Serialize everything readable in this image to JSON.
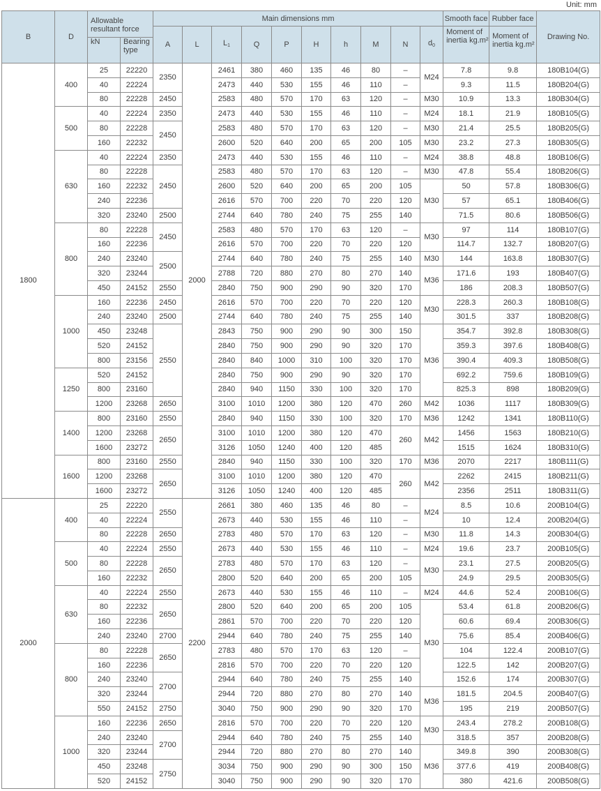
{
  "unit_label": "Unit: mm",
  "header": {
    "B": "B",
    "D": "D",
    "allowable": "Allowable resultant force",
    "kN": "kN",
    "bearing_type": "Bearing type",
    "main_dimensions": "Main dimensions mm",
    "A": "A",
    "L": "L",
    "L1": "L",
    "L1_sub": "1",
    "Q": "Q",
    "P": "P",
    "H": "H",
    "h": "h",
    "M": "M",
    "N": "N",
    "d0": "d",
    "d0_sub": "0",
    "smooth_face": "Smooth face",
    "rubber_face": "Rubber face",
    "moment_smooth": "Moment of inertia kg.m²",
    "moment_rubber": "Moment of inertia kg.m²",
    "drawing_no": "Drawing No."
  },
  "colors": {
    "header_bg": "#cfe0ea",
    "border": "#8a8a8a"
  },
  "rows": [
    [
      [
        "1800",
        30
      ],
      [
        "400",
        3
      ],
      "25",
      "22220",
      [
        "2350",
        2
      ],
      [
        "2000",
        30
      ],
      "2461",
      "380",
      "460",
      "135",
      "46",
      "80",
      "–",
      [
        "M24",
        2
      ],
      "7.8",
      "9.8",
      "180B104(G)"
    ],
    [
      null,
      null,
      "40",
      "22224",
      null,
      null,
      "2473",
      "440",
      "530",
      "155",
      "46",
      "110",
      "–",
      null,
      "9.3",
      "11.5",
      "180B204(G)"
    ],
    [
      null,
      null,
      "80",
      "22228",
      "2450",
      null,
      "2583",
      "480",
      "570",
      "170",
      "63",
      "120",
      "–",
      "M30",
      "10.9",
      "13.3",
      "180B304(G)"
    ],
    [
      null,
      [
        "500",
        3
      ],
      "40",
      "22224",
      "2350",
      null,
      "2473",
      "440",
      "530",
      "155",
      "46",
      "110",
      "–",
      "M24",
      "18.1",
      "21.9",
      "180B105(G)"
    ],
    [
      null,
      null,
      "80",
      "22228",
      [
        "2450",
        2
      ],
      null,
      "2583",
      "480",
      "570",
      "170",
      "63",
      "120",
      "–",
      "M30",
      "21.4",
      "25.5",
      "180B205(G)"
    ],
    [
      null,
      null,
      "160",
      "22232",
      null,
      null,
      "2600",
      "520",
      "640",
      "200",
      "65",
      "200",
      "105",
      "M30",
      "23.2",
      "27.3",
      "180B305(G)"
    ],
    [
      null,
      [
        "630",
        5
      ],
      "40",
      "22224",
      "2350",
      null,
      "2473",
      "440",
      "530",
      "155",
      "46",
      "110",
      "–",
      "M24",
      "38.8",
      "48.8",
      "180B106(G)"
    ],
    [
      null,
      null,
      "80",
      "22228",
      [
        "2450",
        3
      ],
      null,
      "2583",
      "480",
      "570",
      "170",
      "63",
      "120",
      "–",
      "M30",
      "47.8",
      "55.4",
      "180B206(G)"
    ],
    [
      null,
      null,
      "160",
      "22232",
      null,
      null,
      "2600",
      "520",
      "640",
      "200",
      "65",
      "200",
      "105",
      [
        "M30",
        3
      ],
      "50",
      "57.8",
      "180B306(G)"
    ],
    [
      null,
      null,
      "240",
      "22236",
      null,
      null,
      "2616",
      "570",
      "700",
      "220",
      "70",
      "220",
      "120",
      null,
      "57",
      "65.1",
      "180B406(G)"
    ],
    [
      null,
      null,
      "320",
      "23240",
      "2500",
      null,
      "2744",
      "640",
      "780",
      "240",
      "75",
      "255",
      "140",
      null,
      "71.5",
      "80.6",
      "180B506(G)"
    ],
    [
      null,
      [
        "800",
        5
      ],
      "80",
      "22228",
      [
        "2450",
        2
      ],
      null,
      "2583",
      "480",
      "570",
      "170",
      "63",
      "120",
      "–",
      [
        "M30",
        2
      ],
      "97",
      "114",
      "180B107(G)"
    ],
    [
      null,
      null,
      "160",
      "22236",
      null,
      null,
      "2616",
      "570",
      "700",
      "220",
      "70",
      "220",
      "120",
      null,
      "114.7",
      "132.7",
      "180B207(G)"
    ],
    [
      null,
      null,
      "240",
      "23240",
      [
        "2500",
        2
      ],
      null,
      "2744",
      "640",
      "780",
      "240",
      "75",
      "255",
      "140",
      "M30",
      "144",
      "163.8",
      "180B307(G)"
    ],
    [
      null,
      null,
      "320",
      "23244",
      null,
      null,
      "2788",
      "720",
      "880",
      "270",
      "80",
      "270",
      "140",
      [
        "M36",
        2
      ],
      "171.6",
      "193",
      "180B407(G)"
    ],
    [
      null,
      null,
      "450",
      "24152",
      "2550",
      null,
      "2840",
      "750",
      "900",
      "290",
      "90",
      "320",
      "170",
      null,
      "186",
      "208.3",
      "180B507(G)"
    ],
    [
      null,
      [
        "1000",
        5
      ],
      "160",
      "22236",
      "2450",
      null,
      "2616",
      "570",
      "700",
      "220",
      "70",
      "220",
      "120",
      [
        "M30",
        2
      ],
      "228.3",
      "260.3",
      "180B108(G)"
    ],
    [
      null,
      null,
      "240",
      "23240",
      "2500",
      null,
      "2744",
      "640",
      "780",
      "240",
      "75",
      "255",
      "140",
      null,
      "301.5",
      "337",
      "180B208(G)"
    ],
    [
      null,
      null,
      "450",
      "23248",
      [
        "2550",
        5
      ],
      null,
      "2843",
      "750",
      "900",
      "290",
      "90",
      "300",
      "150",
      [
        "M36",
        5
      ],
      "354.7",
      "392.8",
      "180B308(G)"
    ],
    [
      null,
      null,
      "520",
      "24152",
      null,
      null,
      "2840",
      "750",
      "900",
      "290",
      "90",
      "320",
      "170",
      null,
      "359.3",
      "397.6",
      "180B408(G)"
    ],
    [
      null,
      null,
      "800",
      "23156",
      null,
      null,
      "2840",
      "840",
      "1000",
      "310",
      "100",
      "320",
      "170",
      null,
      "390.4",
      "409.3",
      "180B508(G)"
    ],
    [
      null,
      [
        "1250",
        3
      ],
      "520",
      "24152",
      null,
      null,
      "2840",
      "750",
      "900",
      "290",
      "90",
      "320",
      "170",
      null,
      "692.2",
      "759.6",
      "180B109(G)"
    ],
    [
      null,
      null,
      "800",
      "23160",
      null,
      null,
      "2840",
      "940",
      "1150",
      "330",
      "100",
      "320",
      "170",
      null,
      "825.3",
      "898",
      "180B209(G)"
    ],
    [
      null,
      null,
      "1200",
      "23268",
      "2650",
      null,
      "3100",
      "1010",
      "1200",
      "380",
      "120",
      "470",
      "260",
      "M42",
      "1036",
      "1117",
      "180B309(G)"
    ],
    [
      null,
      [
        "1400",
        3
      ],
      "800",
      "23160",
      "2550",
      null,
      "2840",
      "940",
      "1150",
      "330",
      "100",
      "320",
      "170",
      "M36",
      "1242",
      "1341",
      "180B110(G)"
    ],
    [
      null,
      null,
      "1200",
      "23268",
      [
        "2650",
        2
      ],
      null,
      "3100",
      "1010",
      "1200",
      "380",
      "120",
      "470",
      [
        "260",
        2
      ],
      [
        "M42",
        2
      ],
      "1456",
      "1563",
      "180B210(G)"
    ],
    [
      null,
      null,
      "1600",
      "23272",
      null,
      null,
      "3126",
      "1050",
      "1240",
      "400",
      "120",
      "485",
      null,
      null,
      "1515",
      "1624",
      "180B310(G)"
    ],
    [
      null,
      [
        "1600",
        3
      ],
      "800",
      "23160",
      "2550",
      null,
      "2840",
      "940",
      "1150",
      "330",
      "100",
      "320",
      "170",
      "M36",
      "2070",
      "2217",
      "180B111(G)"
    ],
    [
      null,
      null,
      "1200",
      "23268",
      [
        "2650",
        2
      ],
      null,
      "3100",
      "1010",
      "1200",
      "380",
      "120",
      "470",
      [
        "260",
        2
      ],
      [
        "M42",
        2
      ],
      "2262",
      "2415",
      "180B211(G)"
    ],
    [
      null,
      null,
      "1600",
      "23272",
      null,
      null,
      "3126",
      "1050",
      "1240",
      "400",
      "120",
      "485",
      null,
      null,
      "2356",
      "2511",
      "180B311(G)"
    ],
    [
      [
        "2000",
        20
      ],
      [
        "400",
        3
      ],
      "25",
      "22220",
      [
        "2550",
        2
      ],
      [
        "2200",
        20
      ],
      "2661",
      "380",
      "460",
      "135",
      "46",
      "80",
      "–",
      [
        "M24",
        2
      ],
      "8.5",
      "10.6",
      "200B104(G)"
    ],
    [
      null,
      null,
      "40",
      "22224",
      null,
      null,
      "2673",
      "440",
      "530",
      "155",
      "46",
      "110",
      "–",
      null,
      "10",
      "12.4",
      "200B204(G)"
    ],
    [
      null,
      null,
      "80",
      "22228",
      "2650",
      null,
      "2783",
      "480",
      "570",
      "170",
      "63",
      "120",
      "–",
      "M30",
      "11.8",
      "14.3",
      "200B304(G)"
    ],
    [
      null,
      [
        "500",
        3
      ],
      "40",
      "22224",
      "2550",
      null,
      "2673",
      "440",
      "530",
      "155",
      "46",
      "110",
      "–",
      "M24",
      "19.6",
      "23.7",
      "200B105(G)"
    ],
    [
      null,
      null,
      "80",
      "22228",
      [
        "2650",
        2
      ],
      null,
      "2783",
      "480",
      "570",
      "170",
      "63",
      "120",
      "–",
      [
        "M30",
        2
      ],
      "23.1",
      "27.5",
      "200B205(G)"
    ],
    [
      null,
      null,
      "160",
      "22232",
      null,
      null,
      "2800",
      "520",
      "640",
      "200",
      "65",
      "200",
      "105",
      null,
      "24.9",
      "29.5",
      "200B305(G)"
    ],
    [
      null,
      [
        "630",
        4
      ],
      "40",
      "22224",
      "2550",
      null,
      "2673",
      "440",
      "530",
      "155",
      "46",
      "110",
      "–",
      "M24",
      "44.6",
      "52.4",
      "200B106(G)"
    ],
    [
      null,
      null,
      "80",
      "22232",
      [
        "2650",
        2
      ],
      null,
      "2800",
      "520",
      "640",
      "200",
      "65",
      "200",
      "105",
      [
        "M30",
        6
      ],
      "53.4",
      "61.8",
      "200B206(G)"
    ],
    [
      null,
      null,
      "160",
      "22236",
      null,
      null,
      "2861",
      "570",
      "700",
      "220",
      "70",
      "220",
      "120",
      null,
      "60.6",
      "69.4",
      "200B306(G)"
    ],
    [
      null,
      null,
      "240",
      "23240",
      "2700",
      null,
      "2944",
      "640",
      "780",
      "240",
      "75",
      "255",
      "140",
      null,
      "75.6",
      "85.4",
      "200B406(G)"
    ],
    [
      null,
      [
        "800",
        5
      ],
      "80",
      "22228",
      [
        "2650",
        2
      ],
      null,
      "2783",
      "480",
      "570",
      "170",
      "63",
      "120",
      "–",
      null,
      "104",
      "122.4",
      "200B107(G)"
    ],
    [
      null,
      null,
      "160",
      "22236",
      null,
      null,
      "2816",
      "570",
      "700",
      "220",
      "70",
      "220",
      "120",
      null,
      "122.5",
      "142",
      "200B207(G)"
    ],
    [
      null,
      null,
      "240",
      "23240",
      [
        "2700",
        2
      ],
      null,
      "2944",
      "640",
      "780",
      "240",
      "75",
      "255",
      "140",
      null,
      "152.6",
      "174",
      "200B307(G)"
    ],
    [
      null,
      null,
      "320",
      "23244",
      null,
      null,
      "2944",
      "720",
      "880",
      "270",
      "80",
      "270",
      "140",
      [
        "M36",
        2
      ],
      "181.5",
      "204.5",
      "200B407(G)"
    ],
    [
      null,
      null,
      "550",
      "24152",
      "2750",
      null,
      "3040",
      "750",
      "900",
      "290",
      "90",
      "320",
      "170",
      null,
      "195",
      "219",
      "200B507(G)"
    ],
    [
      null,
      [
        "1000",
        5
      ],
      "160",
      "22236",
      "2650",
      null,
      "2816",
      "570",
      "700",
      "220",
      "70",
      "220",
      "120",
      [
        "M30",
        2
      ],
      "243.4",
      "278.2",
      "200B108(G)"
    ],
    [
      null,
      null,
      "240",
      "23240",
      [
        "2700",
        2
      ],
      null,
      "2944",
      "640",
      "780",
      "240",
      "75",
      "255",
      "140",
      null,
      "318.5",
      "357",
      "200B208(G)"
    ],
    [
      null,
      null,
      "320",
      "23244",
      null,
      null,
      "2944",
      "720",
      "880",
      "270",
      "80",
      "270",
      "140",
      [
        "M36",
        3
      ],
      "349.8",
      "390",
      "200B308(G)"
    ],
    [
      null,
      null,
      "450",
      "23248",
      [
        "2750",
        2
      ],
      null,
      "3034",
      "750",
      "900",
      "290",
      "90",
      "300",
      "150",
      null,
      "377.6",
      "419",
      "200B408(G)"
    ],
    [
      null,
      null,
      "520",
      "24152",
      null,
      null,
      "3040",
      "750",
      "900",
      "290",
      "90",
      "320",
      "170",
      null,
      "380",
      "421.6",
      "200B508(G)"
    ]
  ]
}
